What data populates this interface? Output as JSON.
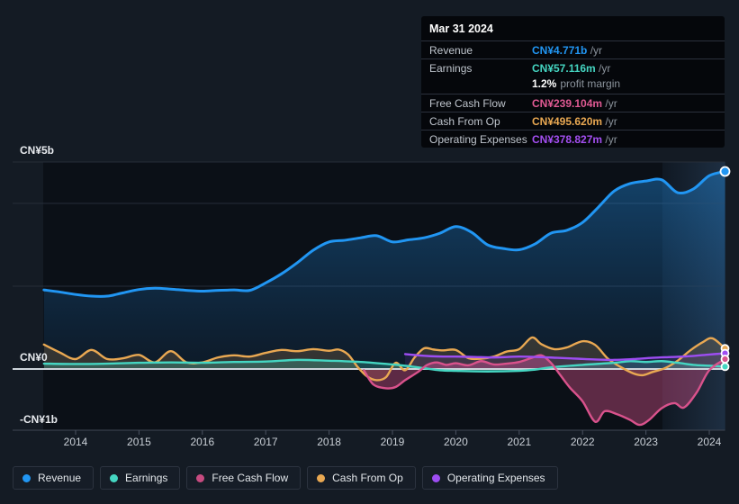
{
  "tooltip": {
    "title": "Mar 31 2024",
    "rows": [
      {
        "id": "revenue",
        "label": "Revenue",
        "value": "CN¥4.771b",
        "unit": "/yr",
        "color": "#2196f3"
      },
      {
        "id": "earnings",
        "label": "Earnings",
        "value": "CN¥57.116m",
        "unit": "/yr",
        "color": "#45d6c2",
        "sub": {
          "strong": "1.2%",
          "text": "profit margin"
        }
      },
      {
        "id": "free-cash-flow",
        "label": "Free Cash Flow",
        "value": "CN¥239.104m",
        "unit": "/yr",
        "color": "#e05a93"
      },
      {
        "id": "cash-from-op",
        "label": "Cash From Op",
        "value": "CN¥495.620m",
        "unit": "/yr",
        "color": "#e9a852"
      },
      {
        "id": "operating-expenses",
        "label": "Operating Expenses",
        "value": "CN¥378.827m",
        "unit": "/yr",
        "color": "#a44ff2"
      }
    ]
  },
  "legend": {
    "items": [
      {
        "id": "revenue",
        "label": "Revenue",
        "color": "#2196f3"
      },
      {
        "id": "earnings",
        "label": "Earnings",
        "color": "#45d6c2"
      },
      {
        "id": "free-cash-flow",
        "label": "Free Cash Flow",
        "color": "#c74b80"
      },
      {
        "id": "cash-from-op",
        "label": "Cash From Op",
        "color": "#e9a852"
      },
      {
        "id": "operating-expenses",
        "label": "Operating Expenses",
        "color": "#9d4df2"
      }
    ]
  },
  "chart_data": {
    "type": "area",
    "unit": "CN¥ billions per year",
    "y_axis_labels": [
      {
        "text": "CN¥5b",
        "value": 5
      },
      {
        "text": "CN¥0",
        "value": 0
      },
      {
        "text": "-CN¥1b",
        "value": -1
      }
    ],
    "gridline_values": [
      5,
      4,
      2
    ],
    "x_ticks": [
      2014,
      2015,
      2016,
      2017,
      2018,
      2019,
      2020,
      2021,
      2022,
      2023,
      2024
    ],
    "x_range": [
      2013.5,
      2024.25
    ],
    "y_range": [
      -1.45,
      5.0
    ],
    "highlight_range": [
      2023.26,
      2024.25
    ],
    "series": [
      {
        "id": "revenue",
        "name": "Revenue",
        "color": "#2196f3",
        "line_width": 3,
        "fill_opacity": 0.0,
        "points": [
          [
            2013.5,
            1.91
          ],
          [
            2013.75,
            1.86
          ],
          [
            2014,
            1.8
          ],
          [
            2014.25,
            1.76
          ],
          [
            2014.5,
            1.76
          ],
          [
            2014.75,
            1.84
          ],
          [
            2015,
            1.92
          ],
          [
            2015.25,
            1.95
          ],
          [
            2015.5,
            1.93
          ],
          [
            2015.75,
            1.9
          ],
          [
            2016,
            1.88
          ],
          [
            2016.25,
            1.9
          ],
          [
            2016.5,
            1.91
          ],
          [
            2016.75,
            1.9
          ],
          [
            2017,
            2.08
          ],
          [
            2017.25,
            2.3
          ],
          [
            2017.5,
            2.57
          ],
          [
            2017.75,
            2.87
          ],
          [
            2018,
            3.07
          ],
          [
            2018.25,
            3.11
          ],
          [
            2018.5,
            3.17
          ],
          [
            2018.75,
            3.22
          ],
          [
            2019,
            3.07
          ],
          [
            2019.25,
            3.12
          ],
          [
            2019.5,
            3.17
          ],
          [
            2019.75,
            3.28
          ],
          [
            2020,
            3.44
          ],
          [
            2020.25,
            3.3
          ],
          [
            2020.5,
            3.0
          ],
          [
            2020.75,
            2.91
          ],
          [
            2021,
            2.88
          ],
          [
            2021.25,
            3.02
          ],
          [
            2021.5,
            3.28
          ],
          [
            2021.75,
            3.35
          ],
          [
            2022,
            3.54
          ],
          [
            2022.25,
            3.91
          ],
          [
            2022.5,
            4.3
          ],
          [
            2022.75,
            4.48
          ],
          [
            2023,
            4.54
          ],
          [
            2023.25,
            4.57
          ],
          [
            2023.5,
            4.26
          ],
          [
            2023.75,
            4.35
          ],
          [
            2024,
            4.67
          ],
          [
            2024.25,
            4.771
          ]
        ]
      },
      {
        "id": "cash-from-op",
        "name": "Cash From Op",
        "color": "#e9a852",
        "line_width": 2.4,
        "fill_opacity": 0.18,
        "points": [
          [
            2013.5,
            0.59
          ],
          [
            2013.75,
            0.4
          ],
          [
            2014,
            0.24
          ],
          [
            2014.25,
            0.46
          ],
          [
            2014.5,
            0.24
          ],
          [
            2014.75,
            0.26
          ],
          [
            2015,
            0.34
          ],
          [
            2015.25,
            0.16
          ],
          [
            2015.5,
            0.43
          ],
          [
            2015.75,
            0.16
          ],
          [
            2016,
            0.16
          ],
          [
            2016.25,
            0.28
          ],
          [
            2016.5,
            0.33
          ],
          [
            2016.75,
            0.3
          ],
          [
            2017,
            0.39
          ],
          [
            2017.25,
            0.46
          ],
          [
            2017.5,
            0.43
          ],
          [
            2017.75,
            0.48
          ],
          [
            2018,
            0.44
          ],
          [
            2018.15,
            0.47
          ],
          [
            2018.3,
            0.35
          ],
          [
            2018.45,
            0.05
          ],
          [
            2018.6,
            -0.12
          ],
          [
            2018.75,
            -0.18
          ],
          [
            2018.9,
            -0.13
          ],
          [
            2019.05,
            0.15
          ],
          [
            2019.2,
            -0.02
          ],
          [
            2019.35,
            0.28
          ],
          [
            2019.5,
            0.5
          ],
          [
            2019.65,
            0.47
          ],
          [
            2019.8,
            0.45
          ],
          [
            2020,
            0.46
          ],
          [
            2020.2,
            0.26
          ],
          [
            2020.4,
            0.25
          ],
          [
            2020.6,
            0.3
          ],
          [
            2020.8,
            0.42
          ],
          [
            2021,
            0.48
          ],
          [
            2021.2,
            0.76
          ],
          [
            2021.35,
            0.6
          ],
          [
            2021.55,
            0.48
          ],
          [
            2021.75,
            0.52
          ],
          [
            2022,
            0.67
          ],
          [
            2022.2,
            0.58
          ],
          [
            2022.4,
            0.25
          ],
          [
            2022.6,
            0.05
          ],
          [
            2022.8,
            -0.07
          ],
          [
            2022.95,
            -0.1
          ],
          [
            2023.1,
            -0.05
          ],
          [
            2023.3,
            0.02
          ],
          [
            2023.5,
            0.2
          ],
          [
            2023.7,
            0.45
          ],
          [
            2023.9,
            0.65
          ],
          [
            2024.05,
            0.74
          ],
          [
            2024.25,
            0.496
          ]
        ]
      },
      {
        "id": "earnings",
        "name": "Earnings",
        "color": "#45d6c2",
        "line_width": 2.4,
        "fill_opacity": 0.25,
        "points": [
          [
            2013.5,
            0.13
          ],
          [
            2014,
            0.12
          ],
          [
            2014.5,
            0.13
          ],
          [
            2015,
            0.15
          ],
          [
            2015.5,
            0.16
          ],
          [
            2016,
            0.15
          ],
          [
            2016.5,
            0.17
          ],
          [
            2017,
            0.18
          ],
          [
            2017.5,
            0.22
          ],
          [
            2018,
            0.2
          ],
          [
            2018.5,
            0.17
          ],
          [
            2019,
            0.11
          ],
          [
            2019.25,
            0.07
          ],
          [
            2019.5,
            0.02
          ],
          [
            2019.75,
            -0.02
          ],
          [
            2020,
            -0.03
          ],
          [
            2020.5,
            -0.04
          ],
          [
            2021,
            -0.03
          ],
          [
            2021.25,
            -0.01
          ],
          [
            2021.5,
            0.04
          ],
          [
            2022,
            0.1
          ],
          [
            2022.5,
            0.15
          ],
          [
            2022.75,
            0.19
          ],
          [
            2023,
            0.17
          ],
          [
            2023.25,
            0.19
          ],
          [
            2023.5,
            0.15
          ],
          [
            2023.75,
            0.1
          ],
          [
            2024,
            0.08
          ],
          [
            2024.25,
            0.057
          ]
        ]
      },
      {
        "id": "free-cash-flow",
        "name": "Free Cash Flow",
        "color": "#d9528c",
        "line_width": 2.4,
        "fill_opacity": 0.4,
        "points": [
          [
            2018.55,
            -0.02
          ],
          [
            2018.7,
            -0.25
          ],
          [
            2018.9,
            -0.31
          ],
          [
            2019.05,
            -0.29
          ],
          [
            2019.2,
            -0.18
          ],
          [
            2019.4,
            -0.05
          ],
          [
            2019.55,
            0.1
          ],
          [
            2019.7,
            0.16
          ],
          [
            2019.85,
            0.1
          ],
          [
            2020,
            0.14
          ],
          [
            2020.2,
            0.09
          ],
          [
            2020.4,
            0.19
          ],
          [
            2020.6,
            0.11
          ],
          [
            2020.8,
            0.13
          ],
          [
            2021,
            0.17
          ],
          [
            2021.2,
            0.27
          ],
          [
            2021.35,
            0.33
          ],
          [
            2021.5,
            0.15
          ],
          [
            2021.65,
            -0.1
          ],
          [
            2021.8,
            -0.3
          ],
          [
            2022,
            -0.52
          ],
          [
            2022.2,
            -0.85
          ],
          [
            2022.35,
            -0.68
          ],
          [
            2022.55,
            -0.73
          ],
          [
            2022.75,
            -0.82
          ],
          [
            2022.9,
            -0.9
          ],
          [
            2023.05,
            -0.82
          ],
          [
            2023.25,
            -0.63
          ],
          [
            2023.45,
            -0.55
          ],
          [
            2023.6,
            -0.62
          ],
          [
            2023.8,
            -0.38
          ],
          [
            2024,
            -0.02
          ],
          [
            2024.25,
            0.239
          ]
        ]
      },
      {
        "id": "operating-expenses",
        "name": "Operating Expenses",
        "color": "#9d4df2",
        "line_width": 2.4,
        "fill_opacity": 0.12,
        "points": [
          [
            2019.2,
            0.36
          ],
          [
            2019.4,
            0.33
          ],
          [
            2019.6,
            0.31
          ],
          [
            2019.8,
            0.3
          ],
          [
            2020,
            0.3
          ],
          [
            2020.3,
            0.29
          ],
          [
            2020.6,
            0.28
          ],
          [
            2021,
            0.3
          ],
          [
            2021.3,
            0.29
          ],
          [
            2021.6,
            0.27
          ],
          [
            2021.9,
            0.25
          ],
          [
            2022.2,
            0.23
          ],
          [
            2022.5,
            0.22
          ],
          [
            2022.8,
            0.24
          ],
          [
            2023.1,
            0.27
          ],
          [
            2023.4,
            0.29
          ],
          [
            2023.7,
            0.31
          ],
          [
            2024,
            0.35
          ],
          [
            2024.25,
            0.379
          ]
        ]
      }
    ],
    "end_markers": [
      {
        "series": "revenue",
        "value": 4.771,
        "r": 5
      },
      {
        "series": "cash-from-op",
        "value": 0.496,
        "r": 4
      },
      {
        "series": "operating-expenses",
        "value": 0.379,
        "r": 4
      },
      {
        "series": "free-cash-flow",
        "value": 0.239,
        "r": 4
      },
      {
        "series": "earnings",
        "value": 0.057,
        "r": 4
      }
    ]
  }
}
